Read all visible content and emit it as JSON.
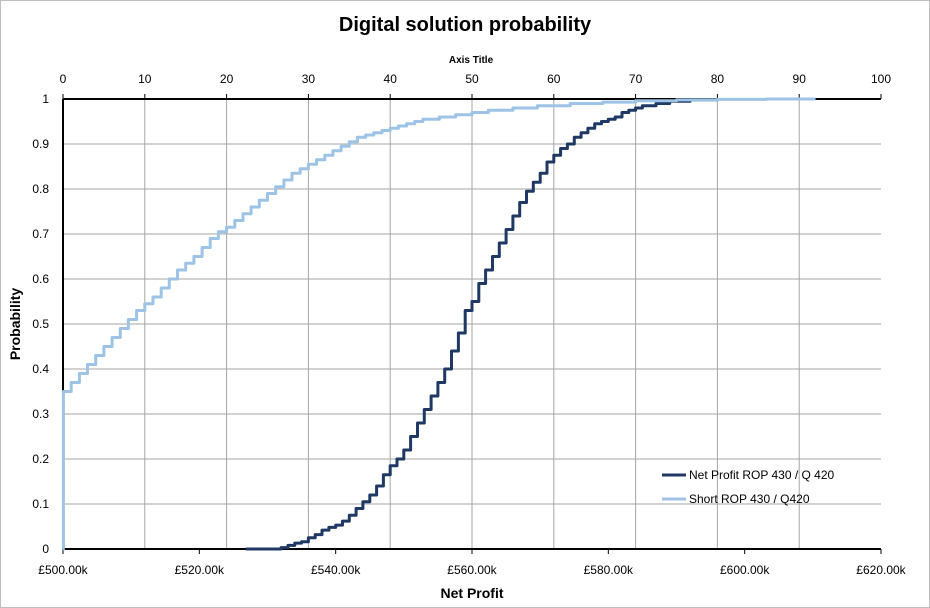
{
  "chart_data": {
    "type": "line",
    "title": "Digital solution probability",
    "xlabel": "Net Profit",
    "ylabel": "Probability",
    "x2label": "Axis Title",
    "xlim": [
      500000,
      620000
    ],
    "x2lim": [
      0,
      100
    ],
    "ylim": [
      0,
      1
    ],
    "x_ticks": [
      "£500.00k",
      "£520.00k",
      "£540.00k",
      "£560.00k",
      "£580.00k",
      "£600.00k",
      "£620.00k"
    ],
    "x2_ticks": [
      "0",
      "10",
      "20",
      "30",
      "40",
      "50",
      "60",
      "70",
      "80",
      "90",
      "100"
    ],
    "y_ticks": [
      "0",
      "0.1",
      "0.2",
      "0.3",
      "0.4",
      "0.5",
      "0.6",
      "0.7",
      "0.8",
      "0.9",
      "1"
    ],
    "grid": true,
    "legend_position": "bottom-right",
    "series": [
      {
        "name": "Net Profit ROP 430 / Q 420",
        "axis": "bottom",
        "color": "#1f3864",
        "points": [
          [
            526800,
            0
          ],
          [
            530000,
            0
          ],
          [
            532000,
            0.003
          ],
          [
            533000,
            0.008
          ],
          [
            534000,
            0.013
          ],
          [
            535000,
            0.016
          ],
          [
            536000,
            0.025
          ],
          [
            537000,
            0.032
          ],
          [
            538000,
            0.042
          ],
          [
            539000,
            0.048
          ],
          [
            540000,
            0.053
          ],
          [
            541000,
            0.062
          ],
          [
            542000,
            0.075
          ],
          [
            543000,
            0.09
          ],
          [
            544000,
            0.105
          ],
          [
            545000,
            0.12
          ],
          [
            546000,
            0.14
          ],
          [
            547000,
            0.165
          ],
          [
            548000,
            0.185
          ],
          [
            549000,
            0.2
          ],
          [
            550000,
            0.22
          ],
          [
            551000,
            0.25
          ],
          [
            552000,
            0.28
          ],
          [
            553000,
            0.31
          ],
          [
            554000,
            0.34
          ],
          [
            555000,
            0.37
          ],
          [
            556000,
            0.4
          ],
          [
            557000,
            0.44
          ],
          [
            558000,
            0.48
          ],
          [
            559000,
            0.53
          ],
          [
            560000,
            0.55
          ],
          [
            561000,
            0.59
          ],
          [
            562000,
            0.62
          ],
          [
            563000,
            0.65
          ],
          [
            564000,
            0.68
          ],
          [
            565000,
            0.71
          ],
          [
            566000,
            0.74
          ],
          [
            567000,
            0.77
          ],
          [
            568000,
            0.795
          ],
          [
            569000,
            0.815
          ],
          [
            570000,
            0.835
          ],
          [
            571000,
            0.86
          ],
          [
            572000,
            0.875
          ],
          [
            573000,
            0.89
          ],
          [
            574000,
            0.9
          ],
          [
            575000,
            0.915
          ],
          [
            576000,
            0.925
          ],
          [
            577000,
            0.935
          ],
          [
            578000,
            0.945
          ],
          [
            579000,
            0.95
          ],
          [
            580000,
            0.955
          ],
          [
            581000,
            0.96
          ],
          [
            582000,
            0.97
          ],
          [
            583000,
            0.975
          ],
          [
            584000,
            0.98
          ],
          [
            585000,
            0.985
          ],
          [
            587000,
            0.99
          ],
          [
            589000,
            0.995
          ],
          [
            592000,
            0.998
          ],
          [
            596000,
            1.0
          ]
        ]
      },
      {
        "name": "Short ROP 430 / Q420",
        "axis": "top",
        "color": "#9dc3e6",
        "points": [
          [
            0,
            0
          ],
          [
            0.05,
            0.35
          ],
          [
            1,
            0.37
          ],
          [
            2,
            0.39
          ],
          [
            3,
            0.41
          ],
          [
            4,
            0.43
          ],
          [
            5,
            0.45
          ],
          [
            6,
            0.47
          ],
          [
            7,
            0.49
          ],
          [
            8,
            0.51
          ],
          [
            9,
            0.53
          ],
          [
            10,
            0.545
          ],
          [
            11,
            0.56
          ],
          [
            12,
            0.58
          ],
          [
            13,
            0.6
          ],
          [
            14,
            0.62
          ],
          [
            15,
            0.635
          ],
          [
            16,
            0.65
          ],
          [
            17,
            0.67
          ],
          [
            18,
            0.69
          ],
          [
            19,
            0.705
          ],
          [
            20,
            0.715
          ],
          [
            21,
            0.73
          ],
          [
            22,
            0.745
          ],
          [
            23,
            0.76
          ],
          [
            24,
            0.775
          ],
          [
            25,
            0.79
          ],
          [
            26,
            0.805
          ],
          [
            27,
            0.82
          ],
          [
            28,
            0.835
          ],
          [
            29,
            0.845
          ],
          [
            30,
            0.855
          ],
          [
            31,
            0.865
          ],
          [
            32,
            0.875
          ],
          [
            33,
            0.885
          ],
          [
            34,
            0.895
          ],
          [
            35,
            0.905
          ],
          [
            36,
            0.915
          ],
          [
            37,
            0.92
          ],
          [
            38,
            0.925
          ],
          [
            39,
            0.93
          ],
          [
            40,
            0.935
          ],
          [
            41,
            0.94
          ],
          [
            42,
            0.945
          ],
          [
            43,
            0.95
          ],
          [
            44,
            0.955
          ],
          [
            46,
            0.96
          ],
          [
            48,
            0.965
          ],
          [
            50,
            0.97
          ],
          [
            52,
            0.975
          ],
          [
            55,
            0.98
          ],
          [
            58,
            0.985
          ],
          [
            62,
            0.99
          ],
          [
            66,
            0.993
          ],
          [
            70,
            0.996
          ],
          [
            75,
            0.998
          ],
          [
            80,
            0.999
          ],
          [
            86,
            1.0
          ],
          [
            92,
            1.0
          ]
        ]
      }
    ]
  }
}
